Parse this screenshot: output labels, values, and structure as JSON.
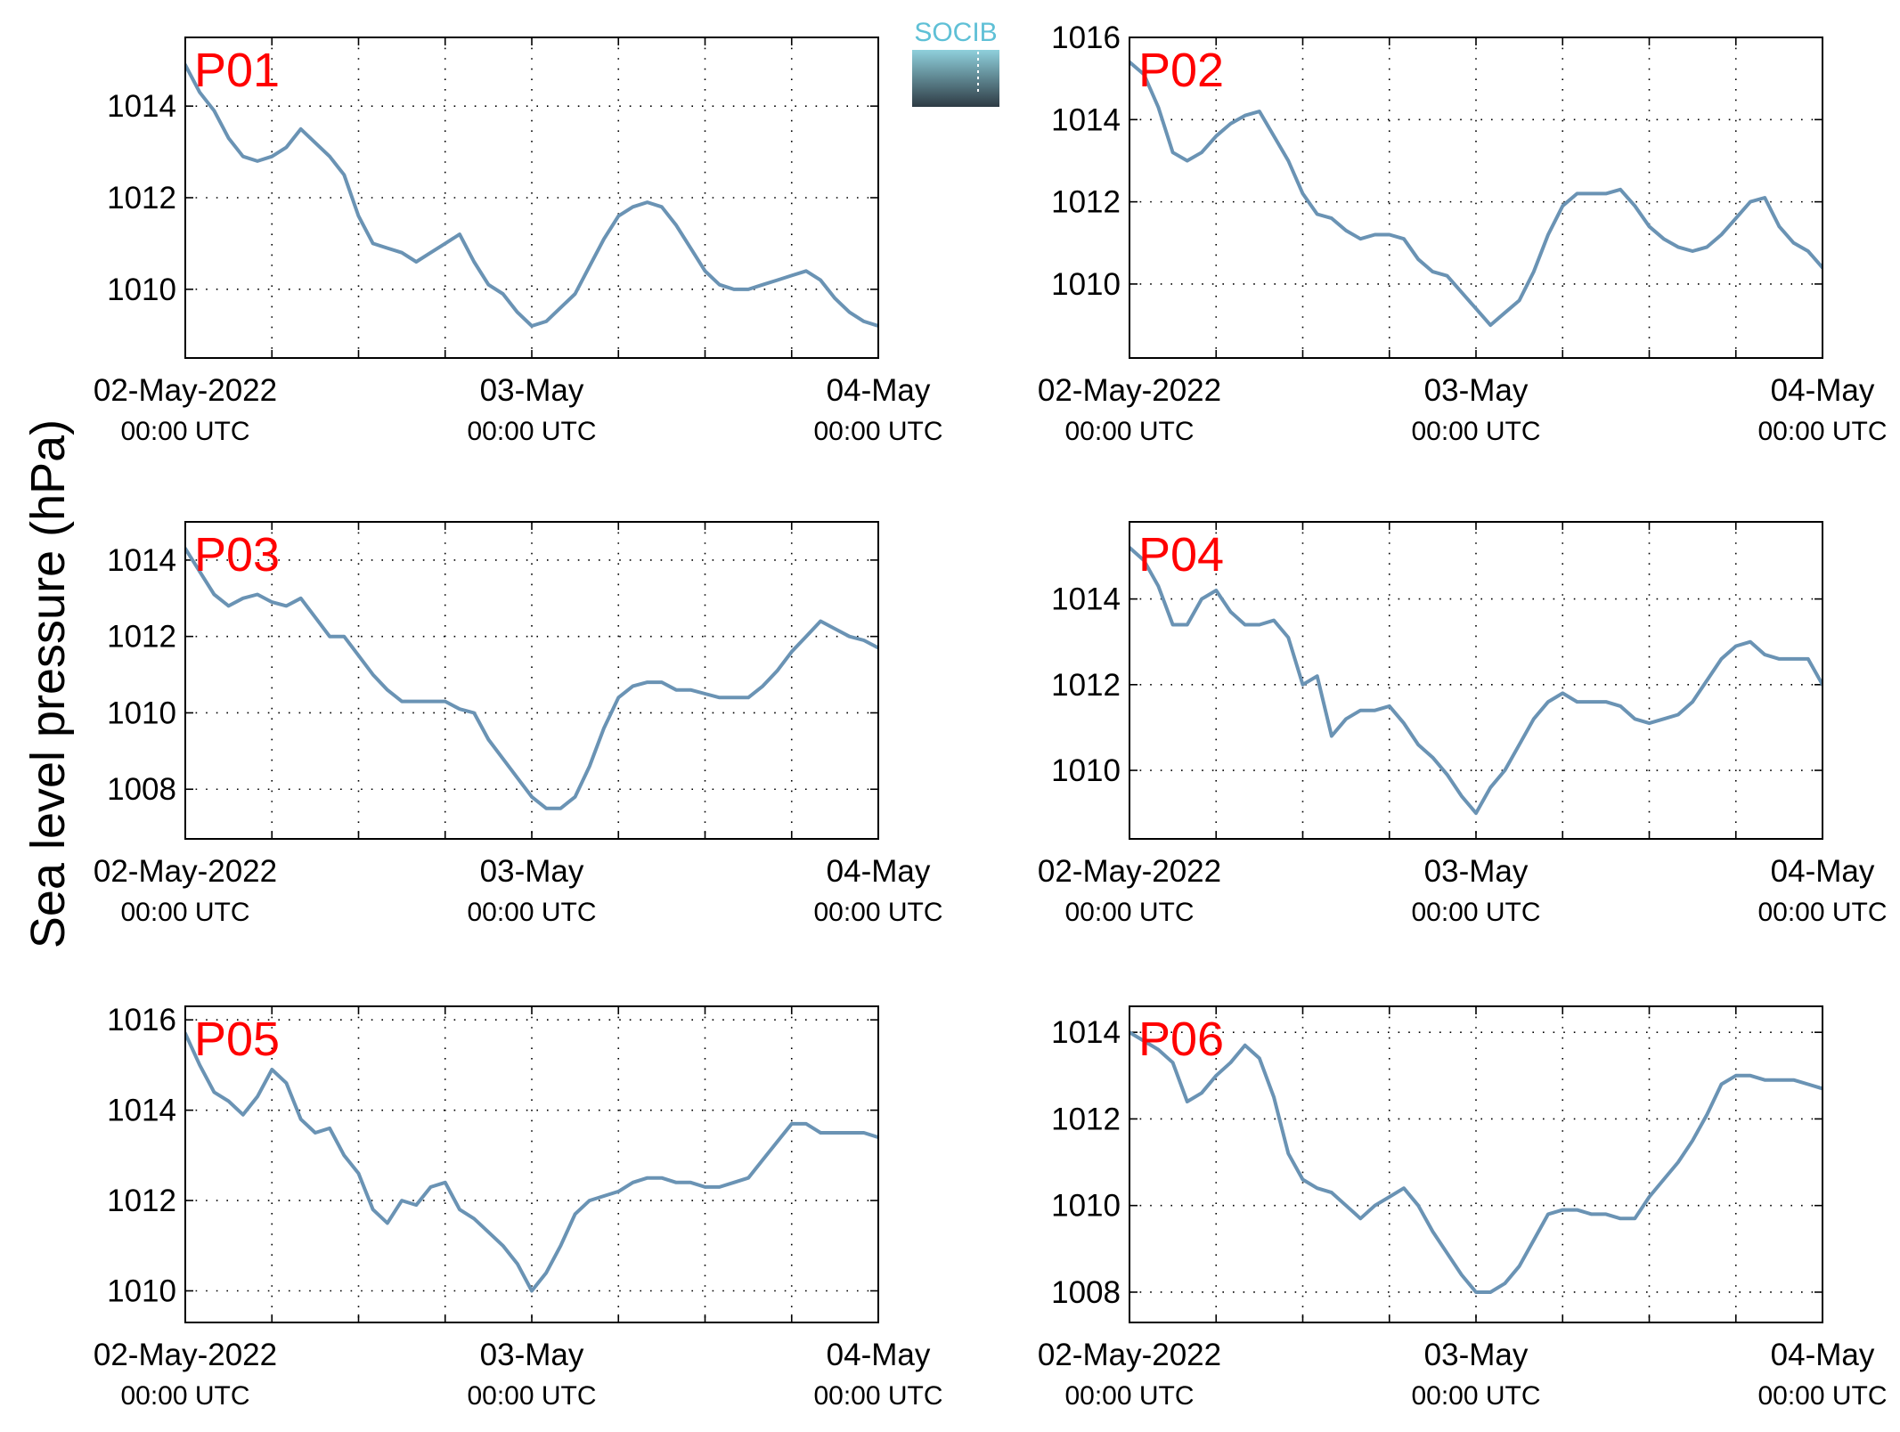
{
  "figure": {
    "ylabel": "Sea level pressure (hPa)",
    "logo_text": "SOCIB",
    "colors": {
      "line": "#6a93b4",
      "panel_label": "#ff0000",
      "axes": "#000000",
      "grid": "#000000",
      "logo_top": "#8fd0dc",
      "logo_bottom": "#2e3b44",
      "logo_text": "#5fc0d6"
    }
  },
  "chart_data": [
    {
      "type": "line",
      "title": "P01",
      "xlim": [
        "2022-05-02 00:00",
        "2022-05-04 00:00"
      ],
      "xticks": [
        {
          "line1": "02-May-2022",
          "line2": "00:00 UTC",
          "at": "2022-05-02 00:00"
        },
        {
          "line1": "03-May",
          "line2": "00:00 UTC",
          "at": "2022-05-03 00:00"
        },
        {
          "line1": "04-May",
          "line2": "00:00 UTC",
          "at": "2022-05-04 00:00"
        }
      ],
      "x_minor_grid_hours": 6,
      "ylim": [
        1008.5,
        1015.5
      ],
      "yticks": [
        1010,
        1012,
        1014
      ],
      "grid": true,
      "series": [
        {
          "x_hours": [
            0,
            1,
            2,
            3,
            4,
            5,
            6,
            7,
            8,
            9,
            10,
            11,
            12,
            13,
            14,
            15,
            16,
            17,
            18,
            19,
            20,
            21,
            22,
            23,
            24,
            25,
            26,
            27,
            28,
            29,
            30,
            31,
            32,
            33,
            34,
            35,
            36,
            37,
            38,
            39,
            40,
            41,
            42,
            43,
            44,
            45,
            46,
            47,
            48
          ],
          "values": [
            1014.9,
            1014.3,
            1013.9,
            1013.3,
            1012.9,
            1012.8,
            1012.9,
            1013.1,
            1013.5,
            1013.2,
            1012.9,
            1012.5,
            1011.6,
            1011.0,
            1010.9,
            1010.8,
            1010.6,
            1010.8,
            1011.0,
            1011.2,
            1010.6,
            1010.1,
            1009.9,
            1009.5,
            1009.2,
            1009.3,
            1009.6,
            1009.9,
            1010.5,
            1011.1,
            1011.6,
            1011.8,
            1011.9,
            1011.8,
            1011.4,
            1010.9,
            1010.4,
            1010.1,
            1010.0,
            1010.0,
            1010.1,
            1010.2,
            1010.3,
            1010.4,
            1010.2,
            1009.8,
            1009.5,
            1009.3,
            1009.2
          ]
        }
      ]
    },
    {
      "type": "line",
      "title": "P02",
      "xlim": [
        "2022-05-02 00:00",
        "2022-05-04 00:00"
      ],
      "xticks": [
        {
          "line1": "02-May-2022",
          "line2": "00:00 UTC",
          "at": "2022-05-02 00:00"
        },
        {
          "line1": "03-May",
          "line2": "00:00 UTC",
          "at": "2022-05-03 00:00"
        },
        {
          "line1": "04-May",
          "line2": "00:00 UTC",
          "at": "2022-05-04 00:00"
        }
      ],
      "x_minor_grid_hours": 6,
      "ylim": [
        1008.2,
        1016
      ],
      "yticks": [
        1010,
        1012,
        1014,
        1016
      ],
      "grid": true,
      "series": [
        {
          "x_hours": [
            0,
            1,
            2,
            3,
            4,
            5,
            6,
            7,
            8,
            9,
            10,
            11,
            12,
            13,
            14,
            15,
            16,
            17,
            18,
            19,
            20,
            21,
            22,
            23,
            24,
            25,
            26,
            27,
            28,
            29,
            30,
            31,
            32,
            33,
            34,
            35,
            36,
            37,
            38,
            39,
            40,
            41,
            42,
            43,
            44,
            45,
            46,
            47,
            48
          ],
          "values": [
            1015.4,
            1015.1,
            1014.3,
            1013.2,
            1013.0,
            1013.2,
            1013.6,
            1013.9,
            1014.1,
            1014.2,
            1013.6,
            1013.0,
            1012.2,
            1011.7,
            1011.6,
            1011.3,
            1011.1,
            1011.2,
            1011.2,
            1011.1,
            1010.6,
            1010.3,
            1010.2,
            1009.8,
            1009.4,
            1009.0,
            1009.3,
            1009.6,
            1010.3,
            1011.2,
            1011.9,
            1012.2,
            1012.2,
            1012.2,
            1012.3,
            1011.9,
            1011.4,
            1011.1,
            1010.9,
            1010.8,
            1010.9,
            1011.2,
            1011.6,
            1012.0,
            1012.1,
            1011.4,
            1011.0,
            1010.8,
            1010.4
          ]
        }
      ]
    },
    {
      "type": "line",
      "title": "P03",
      "xlim": [
        "2022-05-02 00:00",
        "2022-05-04 00:00"
      ],
      "xticks": [
        {
          "line1": "02-May-2022",
          "line2": "00:00 UTC",
          "at": "2022-05-02 00:00"
        },
        {
          "line1": "03-May",
          "line2": "00:00 UTC",
          "at": "2022-05-03 00:00"
        },
        {
          "line1": "04-May",
          "line2": "00:00 UTC",
          "at": "2022-05-04 00:00"
        }
      ],
      "x_minor_grid_hours": 6,
      "ylim": [
        1006.7,
        1015
      ],
      "yticks": [
        1008,
        1010,
        1012,
        1014
      ],
      "grid": true,
      "series": [
        {
          "x_hours": [
            0,
            1,
            2,
            3,
            4,
            5,
            6,
            7,
            8,
            9,
            10,
            11,
            12,
            13,
            14,
            15,
            16,
            17,
            18,
            19,
            20,
            21,
            22,
            23,
            24,
            25,
            26,
            27,
            28,
            29,
            30,
            31,
            32,
            33,
            34,
            35,
            36,
            37,
            38,
            39,
            40,
            41,
            42,
            43,
            44,
            45,
            46,
            47,
            48
          ],
          "values": [
            1014.3,
            1013.7,
            1013.1,
            1012.8,
            1013.0,
            1013.1,
            1012.9,
            1012.8,
            1013.0,
            1012.5,
            1012.0,
            1012.0,
            1011.5,
            1011.0,
            1010.6,
            1010.3,
            1010.3,
            1010.3,
            1010.3,
            1010.1,
            1010.0,
            1009.3,
            1008.8,
            1008.3,
            1007.8,
            1007.5,
            1007.5,
            1007.8,
            1008.6,
            1009.6,
            1010.4,
            1010.7,
            1010.8,
            1010.8,
            1010.6,
            1010.6,
            1010.5,
            1010.4,
            1010.4,
            1010.4,
            1010.7,
            1011.1,
            1011.6,
            1012.0,
            1012.4,
            1012.2,
            1012.0,
            1011.9,
            1011.7
          ]
        }
      ]
    },
    {
      "type": "line",
      "title": "P04",
      "xlim": [
        "2022-05-02 00:00",
        "2022-05-04 00:00"
      ],
      "xticks": [
        {
          "line1": "02-May-2022",
          "line2": "00:00 UTC",
          "at": "2022-05-02 00:00"
        },
        {
          "line1": "03-May",
          "line2": "00:00 UTC",
          "at": "2022-05-03 00:00"
        },
        {
          "line1": "04-May",
          "line2": "00:00 UTC",
          "at": "2022-05-04 00:00"
        }
      ],
      "x_minor_grid_hours": 6,
      "ylim": [
        1008.4,
        1015.8
      ],
      "yticks": [
        1010,
        1012,
        1014
      ],
      "grid": true,
      "series": [
        {
          "x_hours": [
            0,
            1,
            2,
            3,
            4,
            5,
            6,
            7,
            8,
            9,
            10,
            11,
            12,
            13,
            14,
            15,
            16,
            17,
            18,
            19,
            20,
            21,
            22,
            23,
            24,
            25,
            26,
            27,
            28,
            29,
            30,
            31,
            32,
            33,
            34,
            35,
            36,
            37,
            38,
            39,
            40,
            41,
            42,
            43,
            44,
            45,
            46,
            47,
            48
          ],
          "values": [
            1015.2,
            1014.9,
            1014.3,
            1013.4,
            1013.4,
            1014.0,
            1014.2,
            1013.7,
            1013.4,
            1013.4,
            1013.5,
            1013.1,
            1012.0,
            1012.2,
            1010.8,
            1011.2,
            1011.4,
            1011.4,
            1011.5,
            1011.1,
            1010.6,
            1010.3,
            1009.9,
            1009.4,
            1009.0,
            1009.6,
            1010.0,
            1010.6,
            1011.2,
            1011.6,
            1011.8,
            1011.6,
            1011.6,
            1011.6,
            1011.5,
            1011.2,
            1011.1,
            1011.2,
            1011.3,
            1011.6,
            1012.1,
            1012.6,
            1012.9,
            1013.0,
            1012.7,
            1012.6,
            1012.6,
            1012.6,
            1012.0
          ]
        }
      ]
    },
    {
      "type": "line",
      "title": "P05",
      "xlim": [
        "2022-05-02 00:00",
        "2022-05-04 00:00"
      ],
      "xticks": [
        {
          "line1": "02-May-2022",
          "line2": "00:00 UTC",
          "at": "2022-05-02 00:00"
        },
        {
          "line1": "03-May",
          "line2": "00:00 UTC",
          "at": "2022-05-03 00:00"
        },
        {
          "line1": "04-May",
          "line2": "00:00 UTC",
          "at": "2022-05-04 00:00"
        }
      ],
      "x_minor_grid_hours": 6,
      "ylim": [
        1009.3,
        1016.3
      ],
      "yticks": [
        1010,
        1012,
        1014,
        1016
      ],
      "grid": true,
      "series": [
        {
          "x_hours": [
            0,
            1,
            2,
            3,
            4,
            5,
            6,
            7,
            8,
            9,
            10,
            11,
            12,
            13,
            14,
            15,
            16,
            17,
            18,
            19,
            20,
            21,
            22,
            23,
            24,
            25,
            26,
            27,
            28,
            29,
            30,
            31,
            32,
            33,
            34,
            35,
            36,
            37,
            38,
            39,
            40,
            41,
            42,
            43,
            44,
            45,
            46,
            47,
            48
          ],
          "values": [
            1015.7,
            1015.0,
            1014.4,
            1014.2,
            1013.9,
            1014.3,
            1014.9,
            1014.6,
            1013.8,
            1013.5,
            1013.6,
            1013.0,
            1012.6,
            1011.8,
            1011.5,
            1012.0,
            1011.9,
            1012.3,
            1012.4,
            1011.8,
            1011.6,
            1011.3,
            1011.0,
            1010.6,
            1010.0,
            1010.4,
            1011.0,
            1011.7,
            1012.0,
            1012.1,
            1012.2,
            1012.4,
            1012.5,
            1012.5,
            1012.4,
            1012.4,
            1012.3,
            1012.3,
            1012.4,
            1012.5,
            1012.9,
            1013.3,
            1013.7,
            1013.7,
            1013.5,
            1013.5,
            1013.5,
            1013.5,
            1013.4
          ]
        }
      ]
    },
    {
      "type": "line",
      "title": "P06",
      "xlim": [
        "2022-05-02 00:00",
        "2022-05-04 00:00"
      ],
      "xticks": [
        {
          "line1": "02-May-2022",
          "line2": "00:00 UTC",
          "at": "2022-05-02 00:00"
        },
        {
          "line1": "03-May",
          "line2": "00:00 UTC",
          "at": "2022-05-03 00:00"
        },
        {
          "line1": "04-May",
          "line2": "00:00 UTC",
          "at": "2022-05-04 00:00"
        }
      ],
      "x_minor_grid_hours": 6,
      "ylim": [
        1007.3,
        1014.6
      ],
      "yticks": [
        1008,
        1010,
        1012,
        1014
      ],
      "grid": true,
      "series": [
        {
          "x_hours": [
            0,
            1,
            2,
            3,
            4,
            5,
            6,
            7,
            8,
            9,
            10,
            11,
            12,
            13,
            14,
            15,
            16,
            17,
            18,
            19,
            20,
            21,
            22,
            23,
            24,
            25,
            26,
            27,
            28,
            29,
            30,
            31,
            32,
            33,
            34,
            35,
            36,
            37,
            38,
            39,
            40,
            41,
            42,
            43,
            44,
            45,
            46,
            47,
            48
          ],
          "values": [
            1014.0,
            1013.8,
            1013.6,
            1013.3,
            1012.4,
            1012.6,
            1013.0,
            1013.3,
            1013.7,
            1013.4,
            1012.5,
            1011.2,
            1010.6,
            1010.4,
            1010.3,
            1010.0,
            1009.7,
            1010.0,
            1010.2,
            1010.4,
            1010.0,
            1009.4,
            1008.9,
            1008.4,
            1008.0,
            1008.0,
            1008.2,
            1008.6,
            1009.2,
            1009.8,
            1009.9,
            1009.9,
            1009.8,
            1009.8,
            1009.7,
            1009.7,
            1010.2,
            1010.6,
            1011.0,
            1011.5,
            1012.1,
            1012.8,
            1013.0,
            1013.0,
            1012.9,
            1012.9,
            1012.9,
            1012.8,
            1012.7
          ]
        }
      ]
    }
  ]
}
